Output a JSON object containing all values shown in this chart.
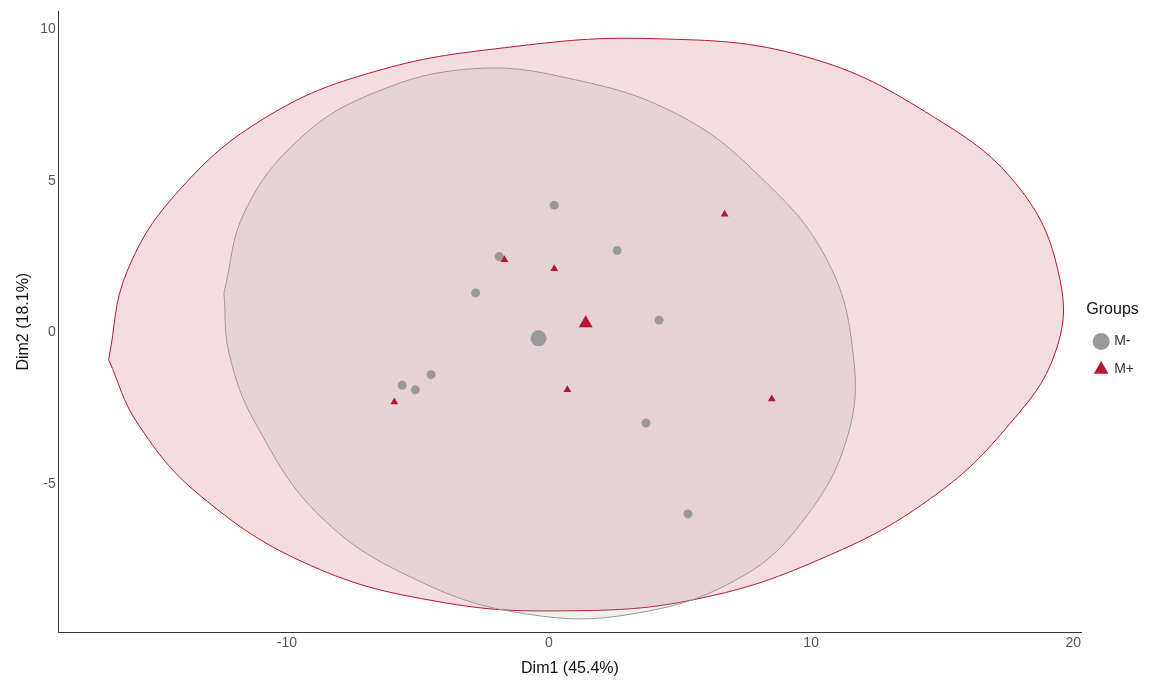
{
  "chart_data": {
    "type": "scatter",
    "xlabel": "Dim1 (45.4%)",
    "ylabel": "Dim2 (18.1%)",
    "legend_title": "Groups",
    "legend": "right",
    "grid": false,
    "xlim": [
      -18.7,
      20.3
    ],
    "xticks": [
      -10,
      0,
      10,
      20
    ],
    "ylim": [
      -9.9,
      10.6
    ],
    "yticks": [
      -5,
      0,
      5,
      10
    ],
    "series": [
      {
        "type": "area",
        "color": "#b5172f",
        "x": [
          -16.8,
          -16.1,
          -14.1,
          -10.8,
          -6.7,
          -1.7,
          4.0,
          9.8,
          14.7,
          18.0,
          19.5,
          19.3,
          17.6,
          14.7,
          10.6,
          5.7,
          0.7,
          -4.2,
          -9.1,
          -13.3,
          -15.7,
          -16.8
        ],
        "values": [
          -0.9,
          2.0,
          4.7,
          7.1,
          8.6,
          9.4,
          9.7,
          9.1,
          7.1,
          4.7,
          1.7,
          -0.7,
          -3.0,
          -5.4,
          -7.4,
          -8.8,
          -9.2,
          -8.9,
          -7.7,
          -5.4,
          -3.0,
          -0.9
        ]
      },
      {
        "type": "area",
        "color": "#999999",
        "x": [
          -12.4,
          -11.6,
          -9.5,
          -6.7,
          -3.0,
          0.7,
          4.9,
          8.1,
          10.6,
          11.6,
          11.4,
          9.8,
          7.3,
          3.2,
          -0.9,
          -5.0,
          -8.7,
          -11.2,
          -12.2,
          -12.4
        ],
        "values": [
          1.3,
          4.0,
          6.4,
          7.9,
          8.7,
          8.4,
          7.2,
          5.1,
          2.4,
          -0.7,
          -3.4,
          -6.1,
          -8.1,
          -9.3,
          -9.3,
          -8.2,
          -6.1,
          -3.0,
          -0.7,
          1.3
        ]
      },
      {
        "name": "M-",
        "type": "scatter",
        "marker": "circle",
        "color": "#999999",
        "x": [
          0.2,
          2.6,
          -2.8,
          -1.9,
          4.2,
          -4.5,
          -5.6,
          -5.1,
          3.7,
          5.3
        ],
        "values": [
          4.2,
          2.7,
          1.3,
          2.5,
          0.4,
          -1.4,
          -1.75,
          -1.9,
          -3.0,
          -6.0
        ]
      },
      {
        "name": "M+",
        "type": "scatter",
        "marker": "triangle",
        "color": "#b5172f",
        "x": [
          6.7,
          -1.7,
          0.2,
          0.7,
          -5.9,
          8.5
        ],
        "values": [
          3.9,
          2.4,
          2.1,
          -1.9,
          -2.3,
          -2.2
        ]
      },
      {
        "type": "scatter",
        "marker": "circle",
        "color": "#999999",
        "x": [
          -0.4
        ],
        "values": [
          -0.2
        ]
      },
      {
        "type": "scatter",
        "marker": "triangle",
        "color": "#b5172f",
        "x": [
          1.4
        ],
        "values": [
          0.3
        ]
      }
    ]
  }
}
